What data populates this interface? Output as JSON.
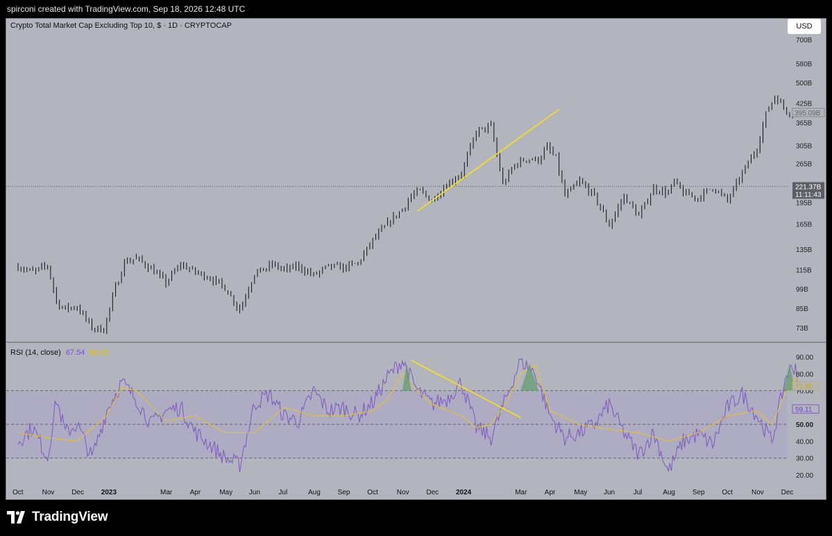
{
  "header": {
    "text": "spirconi created with TradingView.com, Sep 18, 2026 12:48 UTC"
  },
  "chart_title": "Crypto Total Market Cap Excluding Top 10, $ · 1D · CRYPTOCAP",
  "currency_button": "USD",
  "rsi": {
    "label": "RSI (14, close)",
    "value": "67.54",
    "ma_value": "63.49",
    "last_value": "59.11",
    "last_ma": "72.85"
  },
  "price_labels": {
    "current": "395.09B",
    "crosshair": "221.37B",
    "countdown": "11:11:43"
  },
  "footer": {
    "brand": "TradingView"
  },
  "colors": {
    "price": "#111111",
    "rsi_line": "#7e57c2",
    "rsi_ma": "#f0c419",
    "trendline": "#ffe600",
    "panel": "#b3b5be",
    "rsi_band": "#a7a4c7",
    "overbought_fill": "#5e9a6a"
  },
  "chart_data": [
    {
      "type": "candlestick",
      "title": "Crypto Total Market Cap Excluding Top 10, $ · 1D · CRYPTOCAP",
      "y_scale": "log",
      "y_ticks": [
        "700B",
        "580B",
        "500B",
        "425B",
        "365B",
        "305B",
        "265B",
        "195B",
        "165B",
        "135B",
        "115B",
        "99B",
        "85B",
        "73B"
      ],
      "x_ticks": [
        "Oct",
        "Nov",
        "Dec",
        "2023",
        "Mar",
        "Apr",
        "May",
        "Jun",
        "Jul",
        "Aug",
        "Sep",
        "Oct",
        "Nov",
        "Dec",
        "2024",
        "Mar",
        "Apr",
        "May",
        "Jun",
        "Jul",
        "Aug",
        "Sep",
        "Oct",
        "Nov",
        "Dec"
      ],
      "x_tick_months": [
        0,
        1,
        2,
        3,
        5,
        6,
        7,
        8,
        9,
        10,
        11,
        12,
        13,
        14,
        15,
        17,
        18,
        19,
        20,
        21,
        22,
        23,
        24,
        25,
        26
      ],
      "series": [
        {
          "month_index": [
            0,
            0.5,
            1,
            1.3,
            1.5,
            2,
            2.5,
            2.9,
            3.3,
            3.6,
            4,
            4.5,
            5,
            5.5,
            6,
            6.5,
            7,
            7.5,
            8,
            8.3,
            8.6,
            9,
            9.5,
            10,
            10.5,
            11,
            11.5,
            12,
            12.5,
            13,
            13.3,
            13.6,
            14,
            14.5,
            15,
            15.5,
            16,
            16.4,
            16.8,
            17.2,
            17.6,
            17.9,
            18.2,
            18.5,
            19,
            19.5,
            20,
            20.5,
            21,
            21.5,
            22,
            22.2,
            22.5,
            23,
            23.5,
            24,
            24.5,
            25,
            25.3,
            25.6,
            26,
            26.3,
            26.5
          ],
          "close_b": [
            118,
            113,
            119,
            90,
            85,
            86,
            73,
            72,
            100,
            122,
            126,
            116,
            104,
            120,
            113,
            108,
            100,
            84,
            112,
            115,
            120,
            115,
            118,
            110,
            118,
            117,
            121,
            145,
            165,
            185,
            205,
            213,
            198,
            225,
            245,
            340,
            355,
            225,
            262,
            275,
            272,
            301,
            275,
            205,
            230,
            205,
            163,
            205,
            175,
            218,
            210,
            230,
            210,
            202,
            220,
            198,
            245,
            300,
            390,
            450,
            400,
            390,
            395
          ]
        }
      ]
    },
    {
      "type": "line",
      "title": "RSI (14, close)",
      "ylim": [
        20,
        90
      ],
      "y_ticks": [
        90,
        80,
        70,
        60,
        50,
        40,
        30,
        20
      ],
      "series": [
        {
          "name": "RSI",
          "month_index": [
            0,
            0.5,
            1,
            1.3,
            1.6,
            2,
            2.5,
            3,
            3.5,
            4,
            4.5,
            5,
            5.5,
            6,
            6.5,
            7,
            7.5,
            8,
            8.5,
            9,
            9.5,
            10,
            10.5,
            11,
            11.5,
            12,
            12.5,
            13,
            13.5,
            14,
            14.5,
            15,
            15.5,
            16,
            16.5,
            17,
            17.5,
            18,
            18.5,
            19,
            19.5,
            20,
            20.5,
            21,
            21.5,
            22,
            22.5,
            23,
            23.5,
            24,
            24.5,
            25,
            25.5,
            26,
            26.3,
            26.5
          ],
          "values": [
            40,
            48,
            30,
            65,
            45,
            50,
            30,
            58,
            75,
            65,
            50,
            58,
            60,
            45,
            38,
            30,
            26,
            62,
            68,
            55,
            52,
            70,
            58,
            60,
            55,
            63,
            78,
            88,
            70,
            62,
            65,
            75,
            48,
            42,
            65,
            88,
            80,
            55,
            42,
            45,
            50,
            62,
            45,
            32,
            45,
            22,
            40,
            44,
            38,
            60,
            68,
            55,
            40,
            80,
            85,
            59.11
          ]
        },
        {
          "name": "RSI-based MA",
          "month_index": [
            0,
            1,
            2,
            3,
            3.5,
            4,
            5,
            6,
            7,
            8,
            9,
            10,
            11,
            12,
            12.5,
            13,
            13.5,
            14,
            15,
            15.5,
            16,
            16.5,
            17,
            17.5,
            18,
            19,
            20,
            21,
            22,
            23,
            24,
            25,
            25.5,
            26,
            26.3,
            26.5
          ],
          "values": [
            45,
            42,
            40,
            55,
            72,
            70,
            52,
            55,
            45,
            45,
            60,
            55,
            55,
            58,
            65,
            80,
            70,
            62,
            55,
            48,
            50,
            62,
            80,
            85,
            58,
            50,
            47,
            45,
            40,
            45,
            55,
            58,
            50,
            70,
            78,
            72.85
          ]
        }
      ]
    }
  ]
}
